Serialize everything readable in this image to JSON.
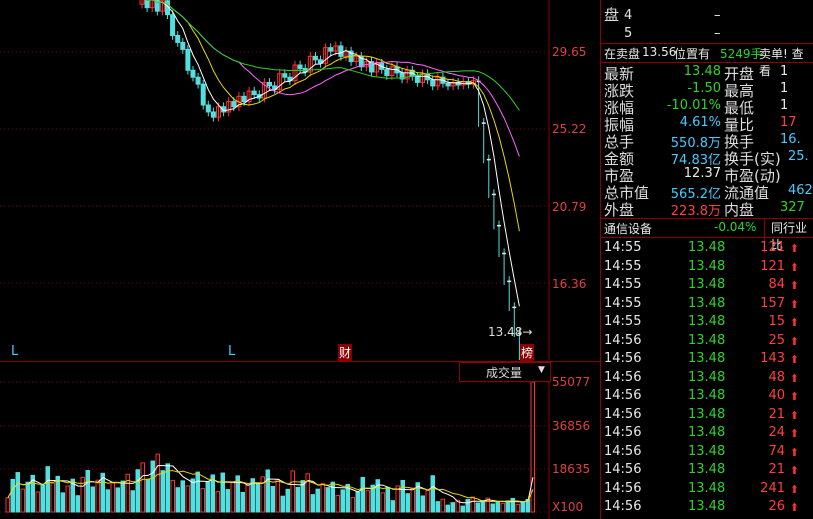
{
  "price_axis": {
    "labels": [
      "29.65",
      "25.22",
      "20.79",
      "16.36"
    ]
  },
  "volume_axis": {
    "labels": [
      "55077",
      "36856",
      "18635"
    ],
    "multiplier": "X100"
  },
  "last_price_marker": "13.48→",
  "markers": {
    "l1": "L",
    "l2": "L",
    "cai": "财",
    "bang": "榜"
  },
  "volume_dropdown": {
    "label": "成交量",
    "arrow": "▼"
  },
  "order_book": {
    "label": "盘",
    "rows": [
      {
        "level": "4",
        "vol": "–"
      },
      {
        "level": "5",
        "vol": "–"
      }
    ]
  },
  "sell_banner": {
    "prefix": "在卖盘",
    "price": "13.56",
    "mid": "位置有",
    "qty": "5249手",
    "suffix": "卖单! 查看"
  },
  "quote": [
    {
      "k": "最新",
      "v": "13.48",
      "c": "g",
      "k2": "开盘",
      "v2": "1",
      "c2": "w"
    },
    {
      "k": "涨跌",
      "v": "-1.50",
      "c": "g",
      "k2": "最高",
      "v2": "1",
      "c2": "w"
    },
    {
      "k": "涨幅",
      "v": "-10.01%",
      "c": "g",
      "k2": "最低",
      "v2": "1",
      "c2": "w"
    },
    {
      "k": "振幅",
      "v": "4.61%",
      "c": "c",
      "k2": "量比",
      "v2": "17",
      "c2": "r"
    },
    {
      "k": "总手",
      "v": "550.8万",
      "c": "c",
      "k2": "换手",
      "v2": "16.",
      "c2": "c"
    },
    {
      "k": "金额",
      "v": "74.83亿",
      "c": "c",
      "k2": "换手(实)",
      "v2": "25.",
      "c2": "c"
    },
    {
      "k": "市盈",
      "v": "12.37",
      "c": "w",
      "k2": "市盈(动)",
      "v2": "",
      "c2": "w"
    },
    {
      "k": "总市值",
      "v": "565.2亿",
      "c": "c",
      "k2": "流通值",
      "v2": "462",
      "c2": "c"
    },
    {
      "k": "外盘",
      "v": "223.8万",
      "c": "r",
      "k2": "内盘",
      "v2": "327",
      "c2": "g"
    }
  ],
  "sector": {
    "name": "通信设备",
    "change": "-0.04%",
    "tab": "同行业比"
  },
  "ticks": [
    {
      "t": "14:55",
      "p": "13.48",
      "v": "121"
    },
    {
      "t": "14:55",
      "p": "13.48",
      "v": "121"
    },
    {
      "t": "14:55",
      "p": "13.48",
      "v": "84"
    },
    {
      "t": "14:55",
      "p": "13.48",
      "v": "157"
    },
    {
      "t": "14:55",
      "p": "13.48",
      "v": "15"
    },
    {
      "t": "14:56",
      "p": "13.48",
      "v": "25"
    },
    {
      "t": "14:56",
      "p": "13.48",
      "v": "143"
    },
    {
      "t": "14:56",
      "p": "13.48",
      "v": "48"
    },
    {
      "t": "14:56",
      "p": "13.48",
      "v": "40"
    },
    {
      "t": "14:56",
      "p": "13.48",
      "v": "21"
    },
    {
      "t": "14:56",
      "p": "13.48",
      "v": "24"
    },
    {
      "t": "14:56",
      "p": "13.48",
      "v": "74"
    },
    {
      "t": "14:56",
      "p": "13.48",
      "v": "21"
    },
    {
      "t": "14:56",
      "p": "13.48",
      "v": "241"
    },
    {
      "t": "14:56",
      "p": "13.48",
      "v": "26"
    }
  ],
  "colors": {
    "up": "#ff3030",
    "down": "#50e0e0",
    "grid": "#8b0000",
    "ma5": "#ffffff",
    "ma10": "#e8d800",
    "ma20": "#ff66ff",
    "ma60": "#2bd42b"
  }
}
